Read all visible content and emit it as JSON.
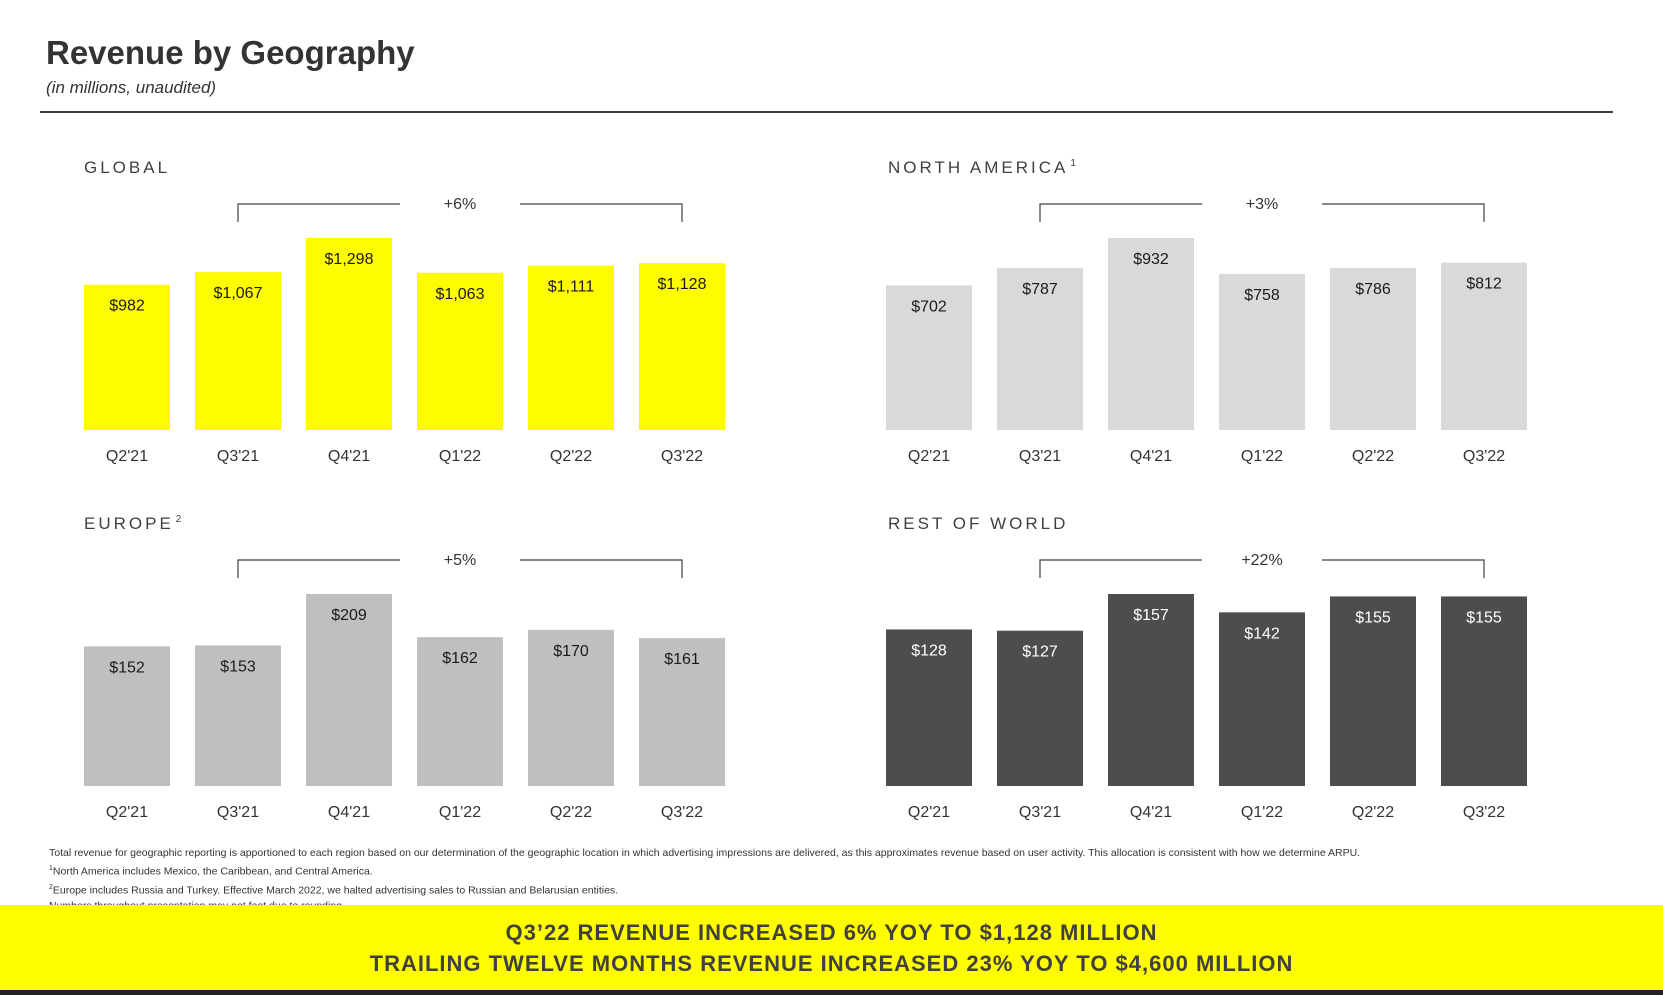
{
  "header": {
    "title": "Revenue by Geography",
    "subtitle": "(in millions, unaudited)"
  },
  "colors": {
    "global": "#fffc00",
    "north_america": "#d9d9d9",
    "europe": "#bfbfbf",
    "rest_of_world": "#4d4d4d",
    "banner": "#fffc00"
  },
  "chart_data": [
    {
      "type": "bar",
      "title": "GLOBAL",
      "footnote_mark": "",
      "categories": [
        "Q2'21",
        "Q3'21",
        "Q4'21",
        "Q1'22",
        "Q2'22",
        "Q3'22"
      ],
      "values": [
        982,
        1067,
        1298,
        1063,
        1111,
        1128
      ],
      "labels": [
        "$982",
        "$1,067",
        "$1,298",
        "$1,063",
        "$1,111",
        "$1,128"
      ],
      "growth_label": "+6%",
      "growth_from": "Q3'21",
      "growth_to": "Q3'22",
      "ylim": [
        0,
        1298
      ],
      "color": "#fffc00",
      "label_color": "#1a1a1a"
    },
    {
      "type": "bar",
      "title": "NORTH AMERICA",
      "footnote_mark": "1",
      "categories": [
        "Q2'21",
        "Q3'21",
        "Q4'21",
        "Q1'22",
        "Q2'22",
        "Q3'22"
      ],
      "values": [
        702,
        787,
        932,
        758,
        786,
        812
      ],
      "labels": [
        "$702",
        "$787",
        "$932",
        "$758",
        "$786",
        "$812"
      ],
      "growth_label": "+3%",
      "growth_from": "Q3'21",
      "growth_to": "Q3'22",
      "ylim": [
        0,
        932
      ],
      "color": "#d9d9d9",
      "label_color": "#1a1a1a"
    },
    {
      "type": "bar",
      "title": "EUROPE",
      "footnote_mark": "2",
      "categories": [
        "Q2'21",
        "Q3'21",
        "Q4'21",
        "Q1'22",
        "Q2'22",
        "Q3'22"
      ],
      "values": [
        152,
        153,
        209,
        162,
        170,
        161
      ],
      "labels": [
        "$152",
        "$153",
        "$209",
        "$162",
        "$170",
        "$161"
      ],
      "growth_label": "+5%",
      "growth_from": "Q3'21",
      "growth_to": "Q3'22",
      "ylim": [
        0,
        209
      ],
      "color": "#bfbfbf",
      "label_color": "#1a1a1a"
    },
    {
      "type": "bar",
      "title": "REST OF WORLD",
      "footnote_mark": "",
      "categories": [
        "Q2'21",
        "Q3'21",
        "Q4'21",
        "Q1'22",
        "Q2'22",
        "Q3'22"
      ],
      "values": [
        128,
        127,
        157,
        142,
        155,
        155
      ],
      "labels": [
        "$128",
        "$127",
        "$157",
        "$142",
        "$155",
        "$155"
      ],
      "growth_label": "+22%",
      "growth_from": "Q3'21",
      "growth_to": "Q3'22",
      "ylim": [
        0,
        157
      ],
      "color": "#4d4d4d",
      "label_color": "#ffffff"
    }
  ],
  "footnotes": {
    "line1": "Total revenue for geographic reporting is apportioned to each region based on our determination of the geographic location in which advertising impressions are delivered, as this approximates revenue based on user activity. This allocation is consistent with how we determine ARPU.",
    "line2_mark": "1",
    "line2": "North America includes Mexico, the Caribbean, and Central America.",
    "line3_mark": "2",
    "line3": "Europe includes Russia and Turkey. Effective March 2022, we halted advertising sales to Russian and Belarusian entities.",
    "line4": "Numbers throughout presentation may not foot due to rounding."
  },
  "banner": {
    "line1": "Q3’22 REVENUE INCREASED 6% YOY TO $1,128 MILLION",
    "line2": "TRAILING TWELVE MONTHS REVENUE INCREASED 23% YOY TO $4,600 MILLION"
  }
}
